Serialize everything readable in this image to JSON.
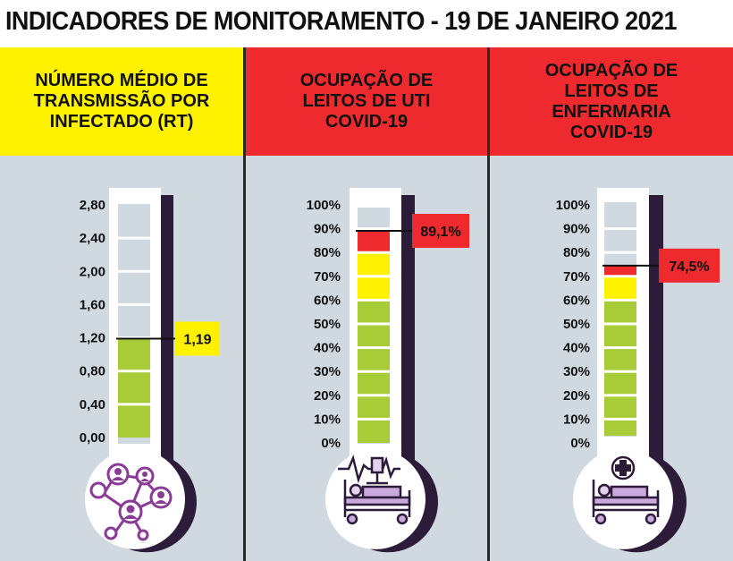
{
  "title": "INDICADORES DE MONITORAMENTO - 19 DE JANEIRO 2021",
  "colors": {
    "yellow": "#fff200",
    "red": "#ee2a2f",
    "green": "#a7cc37",
    "panel_bg": "#cfd9df",
    "purple": "#8a3b96",
    "outline": "#2d1b3a"
  },
  "panels": [
    {
      "header_lines": [
        "NÚMERO MÉDIO DE",
        "TRANSMISSÃO POR",
        "INFECTADO (RT)"
      ],
      "header_color": "#fff200",
      "tick_labels": [
        "2,80",
        "2,40",
        "2,00",
        "1,60",
        "1,20",
        "0,80",
        "0,40",
        "0,00"
      ],
      "value": 1.19,
      "value_label": "1,19",
      "label_color": "#fff200",
      "icon": "network-people-icon"
    },
    {
      "header_lines": [
        "OCUPAÇÃO DE",
        "LEITOS DE UTI",
        "COVID-19"
      ],
      "header_color": "#ee2a2f",
      "tick_labels": [
        "100%",
        "90%",
        "80%",
        "70%",
        "60%",
        "50%",
        "40%",
        "30%",
        "20%",
        "10%",
        "0%"
      ],
      "value": 89.1,
      "value_label": "89,1%",
      "label_color": "#ee2a2f",
      "icon": "icu-bed-monitor-icon"
    },
    {
      "header_lines": [
        "OCUPAÇÃO DE",
        "LEITOS DE",
        "ENFERMARIA",
        "COVID-19"
      ],
      "header_color": "#ee2a2f",
      "tick_labels": [
        "100%",
        "90%",
        "80%",
        "70%",
        "60%",
        "50%",
        "40%",
        "30%",
        "20%",
        "10%",
        "0%"
      ],
      "value": 74.5,
      "value_label": "74,5%",
      "label_color": "#ee2a2f",
      "icon": "ward-bed-cross-icon"
    }
  ]
}
